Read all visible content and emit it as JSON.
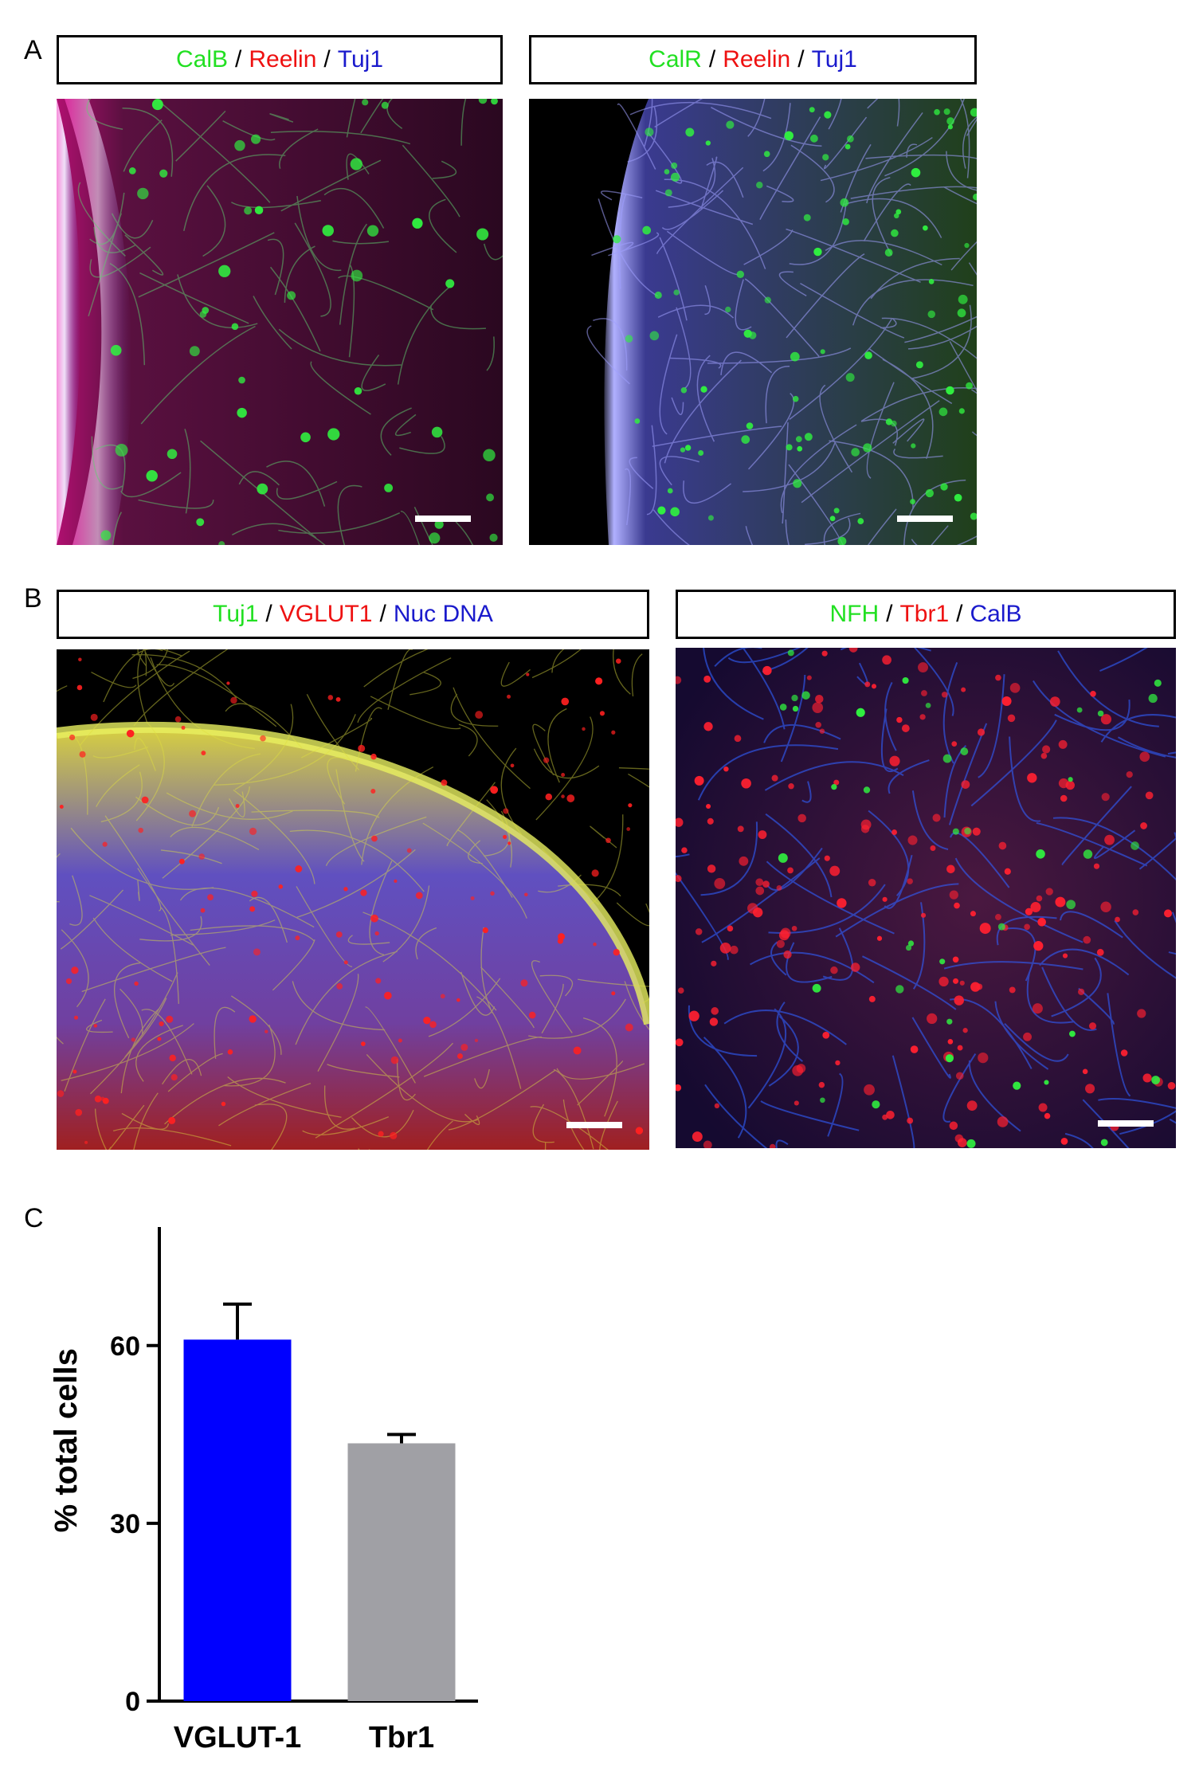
{
  "panel_letters": {
    "a": "A",
    "b": "B",
    "c": "C"
  },
  "panels": [
    {
      "stains": [
        {
          "text": "CalB",
          "color": "#22e022"
        },
        {
          "text": "Reelin",
          "color": "#ee1111"
        },
        {
          "text": "Tuj1",
          "color": "#1a1acc"
        }
      ]
    },
    {
      "stains": [
        {
          "text": "CalR",
          "color": "#22e022"
        },
        {
          "text": "Reelin",
          "color": "#ee1111"
        },
        {
          "text": "Tuj1",
          "color": "#1a1acc"
        }
      ]
    },
    {
      "stains": [
        {
          "text": "Tuj1",
          "color": "#22e022"
        },
        {
          "text": "VGLUT1",
          "color": "#ee1111"
        },
        {
          "text": "Nuc DNA",
          "color": "#1a1acc"
        }
      ]
    },
    {
      "stains": [
        {
          "text": "NFH",
          "color": "#22e022"
        },
        {
          "text": "Tbr1",
          "color": "#ee1111"
        },
        {
          "text": "CalB",
          "color": "#1a1acc"
        }
      ]
    }
  ],
  "separator": "/",
  "chart_data": {
    "type": "bar",
    "categories": [
      "VGLUT-1",
      "Tbr1"
    ],
    "values": [
      61,
      43.5
    ],
    "errors": [
      6,
      1.5
    ],
    "colors": [
      "#0000ff",
      "#a0a0a5"
    ],
    "ylabel": "% total cells",
    "yticks": [
      0,
      30,
      60
    ],
    "ylim": [
      0,
      80
    ]
  }
}
